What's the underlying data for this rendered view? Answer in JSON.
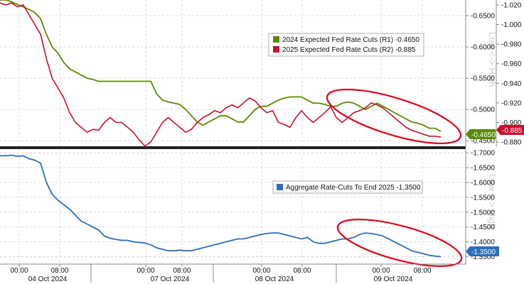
{
  "chart_data": [
    {
      "type": "line",
      "panel": "top",
      "x_labels": [
        "00:00",
        "08:00",
        "00:00",
        "08:00",
        "00:00",
        "08:00",
        "00:00",
        "08:00"
      ],
      "date_labels": [
        "04 Oct 2024",
        "07 Oct 2024",
        "08 Oct 2024",
        "09 Oct 2024"
      ],
      "axis_title": "Low <-> High",
      "left_axis": {
        "ticks": [
          "-0.6500",
          "-0.6000",
          "-0.5500",
          "-0.5000",
          "-0.4500"
        ],
        "ylim": [
          -0.675,
          -0.44
        ]
      },
      "right_axis": {
        "ticks": [
          "-1.020",
          "-1.000",
          "-0.980",
          "-0.960",
          "-0.940",
          "-0.920",
          "-0.900",
          "-0.880"
        ],
        "ylim": [
          -1.025,
          -0.875
        ]
      },
      "legend_placement": "top-right",
      "series": [
        {
          "name": "2024 Expected Fed Rate Cuts (R1) -0.4650",
          "axis": "left",
          "color": "#5a8a00",
          "last_value": "-0.4650",
          "values": [
            -0.675,
            -0.675,
            -0.672,
            -0.668,
            -0.664,
            -0.66,
            -0.655,
            -0.645,
            -0.62,
            -0.6,
            -0.59,
            -0.575,
            -0.565,
            -0.56,
            -0.555,
            -0.55,
            -0.548,
            -0.545,
            -0.545,
            -0.545,
            -0.545,
            -0.545,
            -0.545,
            -0.545,
            -0.545,
            -0.545,
            -0.545,
            -0.525,
            -0.515,
            -0.512,
            -0.51,
            -0.508,
            -0.5,
            -0.49,
            -0.48,
            -0.475,
            -0.48,
            -0.485,
            -0.49,
            -0.49,
            -0.485,
            -0.48,
            -0.48,
            -0.49,
            -0.5,
            -0.505,
            -0.505,
            -0.51,
            -0.515,
            -0.518,
            -0.52,
            -0.52,
            -0.52,
            -0.515,
            -0.51,
            -0.51,
            -0.508,
            -0.505,
            -0.505,
            -0.51,
            -0.512,
            -0.51,
            -0.505,
            -0.5,
            -0.505,
            -0.51,
            -0.505,
            -0.5,
            -0.495,
            -0.49,
            -0.485,
            -0.48,
            -0.478,
            -0.475,
            -0.47,
            -0.47,
            -0.465
          ]
        },
        {
          "name": "2025 Expected Fed Rate Cuts (R2) -0.885",
          "axis": "right",
          "color": "#c8102e",
          "last_value": "-0.885",
          "values": [
            -1.022,
            -1.02,
            -1.022,
            -1.018,
            -1.02,
            -1.01,
            -1.0,
            -0.99,
            -0.965,
            -0.945,
            -0.935,
            -0.925,
            -0.91,
            -0.9,
            -0.895,
            -0.89,
            -0.893,
            -0.892,
            -0.9,
            -0.905,
            -0.9,
            -0.9,
            -0.895,
            -0.89,
            -0.882,
            -0.876,
            -0.88,
            -0.89,
            -0.9,
            -0.905,
            -0.9,
            -0.895,
            -0.89,
            -0.893,
            -0.9,
            -0.905,
            -0.908,
            -0.912,
            -0.91,
            -0.915,
            -0.918,
            -0.915,
            -0.92,
            -0.925,
            -0.922,
            -0.915,
            -0.91,
            -0.912,
            -0.9,
            -0.898,
            -0.895,
            -0.905,
            -0.912,
            -0.905,
            -0.9,
            -0.905,
            -0.91,
            -0.916,
            -0.905,
            -0.9,
            -0.905,
            -0.91,
            -0.912,
            -0.915,
            -0.92,
            -0.918,
            -0.915,
            -0.91,
            -0.905,
            -0.9,
            -0.895,
            -0.892,
            -0.89,
            -0.888,
            -0.886,
            -0.886,
            -0.885
          ]
        }
      ]
    },
    {
      "type": "line",
      "panel": "bottom",
      "axis_title": "Low <-> High",
      "right_axis": {
        "ticks": [
          "-1.7000",
          "-1.6500",
          "-1.6000",
          "-1.5500",
          "-1.5000",
          "-1.4500",
          "-1.4000",
          "-1.3500"
        ],
        "ylim": [
          -1.71,
          -1.325
        ]
      },
      "legend_placement": "top-right",
      "series": [
        {
          "name": "Aggregate Rate-Cuts To End 2025 -1.3500",
          "color": "#2a6ebd",
          "last_value": "-1.3500",
          "values": [
            -1.69,
            -1.69,
            -1.692,
            -1.688,
            -1.69,
            -1.68,
            -1.675,
            -1.665,
            -1.6,
            -1.56,
            -1.54,
            -1.525,
            -1.51,
            -1.49,
            -1.47,
            -1.46,
            -1.45,
            -1.44,
            -1.42,
            -1.412,
            -1.408,
            -1.405,
            -1.405,
            -1.4,
            -1.398,
            -1.396,
            -1.39,
            -1.38,
            -1.375,
            -1.37,
            -1.37,
            -1.372,
            -1.37,
            -1.37,
            -1.375,
            -1.38,
            -1.385,
            -1.39,
            -1.395,
            -1.4,
            -1.405,
            -1.41,
            -1.41,
            -1.415,
            -1.42,
            -1.425,
            -1.428,
            -1.43,
            -1.43,
            -1.425,
            -1.42,
            -1.415,
            -1.41,
            -1.415,
            -1.4,
            -1.395,
            -1.395,
            -1.4,
            -1.405,
            -1.41,
            -1.41,
            -1.415,
            -1.425,
            -1.43,
            -1.428,
            -1.425,
            -1.42,
            -1.41,
            -1.4,
            -1.39,
            -1.38,
            -1.37,
            -1.365,
            -1.36,
            -1.355,
            -1.352,
            -1.35
          ]
        }
      ]
    }
  ]
}
